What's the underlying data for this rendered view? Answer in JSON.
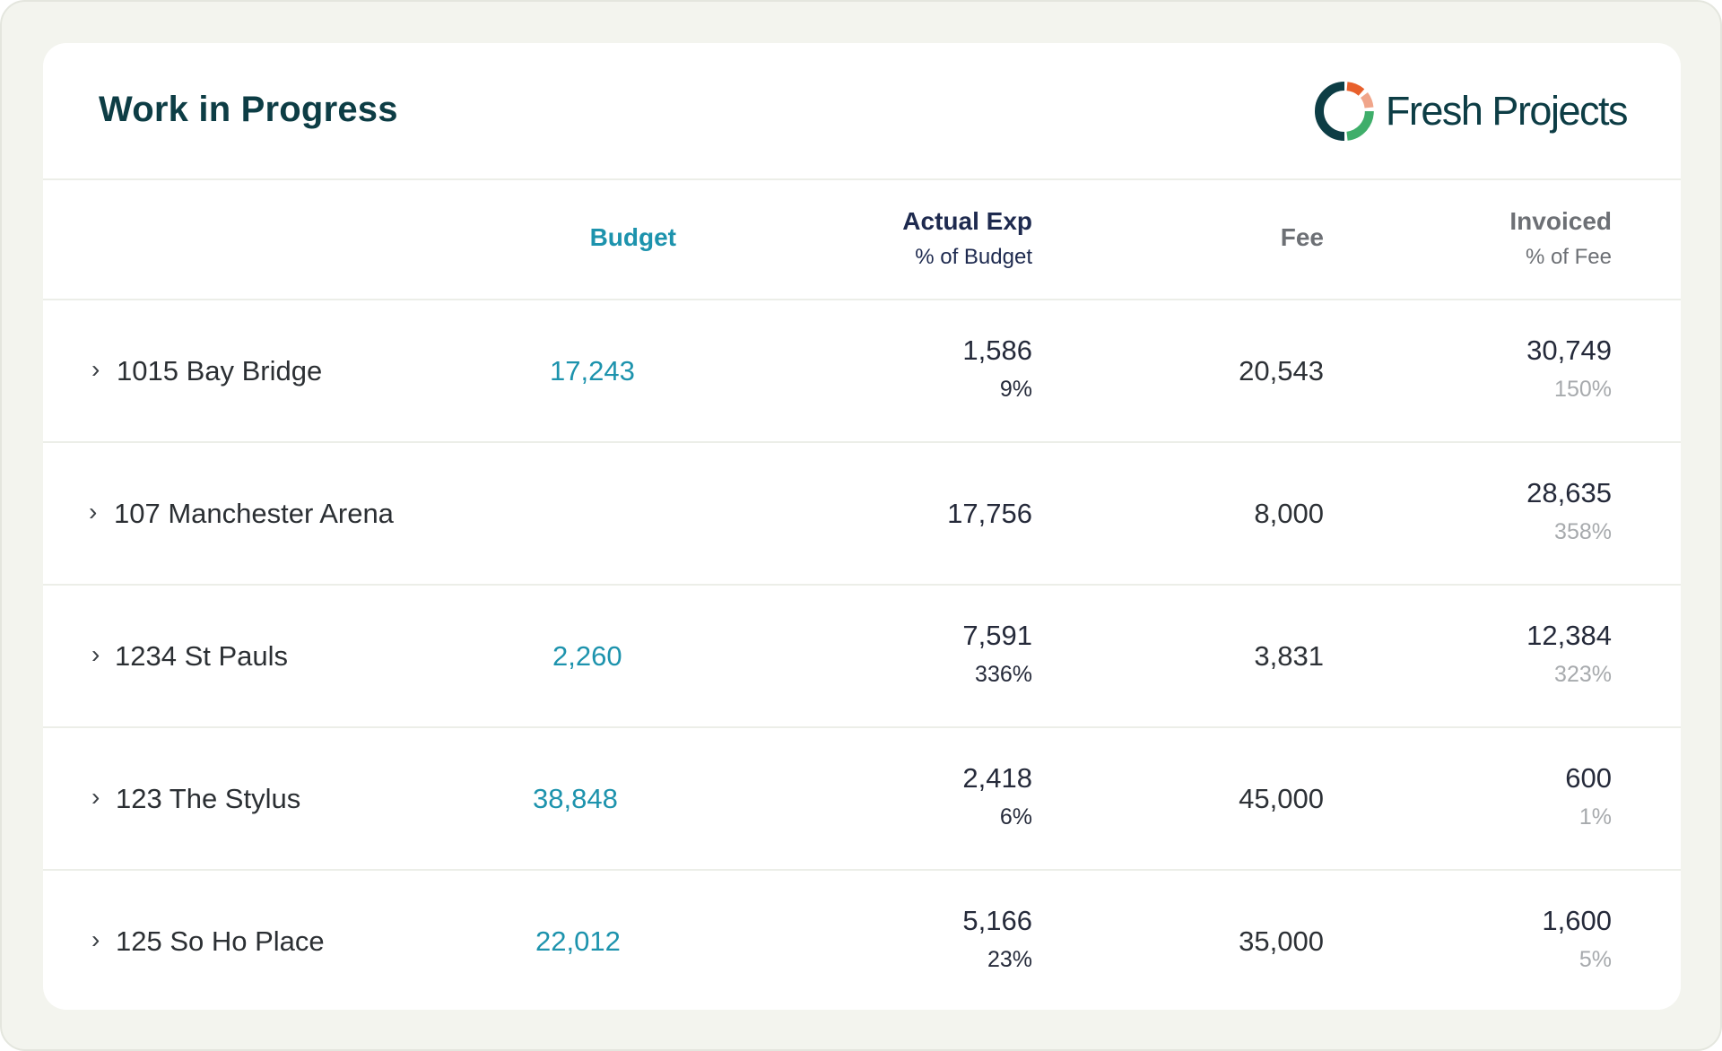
{
  "header": {
    "title": "Work in Progress",
    "brand_name": "Fresh Projects",
    "brand_icon": "fresh-projects-logo"
  },
  "columns": {
    "budget": "Budget",
    "actual_exp": "Actual Exp",
    "actual_exp_sub": "% of Budget",
    "fee": "Fee",
    "invoiced": "Invoiced",
    "invoiced_sub": "% of Fee"
  },
  "colors": {
    "title": "#0d3d45",
    "budget_accent": "#1d93ad",
    "actual_exp_header": "#1e2a4f",
    "muted_header": "#6d7075",
    "logo_orange": "#e8602c",
    "logo_peach": "#f0a58a",
    "logo_green": "#3fae6a"
  },
  "rows": [
    {
      "chevron": "›",
      "name": "1015 Bay Bridge",
      "budget": "17,243",
      "actual": "1,586",
      "actual_pct": "9%",
      "fee": "20,543",
      "invoiced": "30,749",
      "invoiced_pct": "150%"
    },
    {
      "chevron": "›",
      "name": "107 Manchester Arena",
      "budget": "",
      "actual": "17,756",
      "actual_pct": "",
      "fee": "8,000",
      "invoiced": "28,635",
      "invoiced_pct": "358%"
    },
    {
      "chevron": "›",
      "name": "1234 St Pauls",
      "budget": "2,260",
      "actual": "7,591",
      "actual_pct": "336%",
      "fee": "3,831",
      "invoiced": "12,384",
      "invoiced_pct": "323%"
    },
    {
      "chevron": "›",
      "name": "123 The Stylus",
      "budget": "38,848",
      "actual": "2,418",
      "actual_pct": "6%",
      "fee": "45,000",
      "invoiced": "600",
      "invoiced_pct": "1%"
    },
    {
      "chevron": "›",
      "name": "125 So Ho Place",
      "budget": "22,012",
      "actual": "5,166",
      "actual_pct": "23%",
      "fee": "35,000",
      "invoiced": "1,600",
      "invoiced_pct": "5%"
    }
  ]
}
